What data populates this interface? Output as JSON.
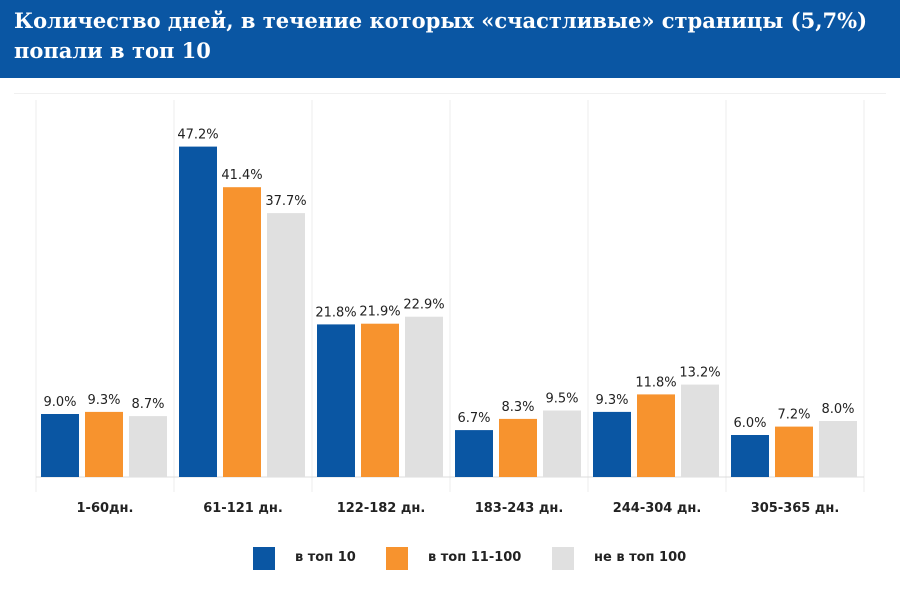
{
  "header": {
    "title": "Количество дней, в течение которых «счастливые» страницы (5,7%) попали в топ 10"
  },
  "colors": {
    "header_bg": "#0a56a3",
    "series": [
      "#0a56a3",
      "#f7932e",
      "#e0e0e0"
    ]
  },
  "chart_data": {
    "type": "bar",
    "title": "Количество дней, в течение которых «счастливые» страницы (5,7%) попали в топ 10",
    "categories": [
      "1-60дн.",
      "61-121 дн.",
      "122-182 дн.",
      "183-243 дн.",
      "244-304 дн.",
      "305-365 дн."
    ],
    "series": [
      {
        "name": "в топ 10",
        "values": [
          9.0,
          47.2,
          21.8,
          6.7,
          9.3,
          6.0
        ],
        "labels": [
          "9.0%",
          "47.2%",
          "21.8%",
          "6.7%",
          "9.3%",
          "6.0%"
        ],
        "color": "#0a56a3"
      },
      {
        "name": "в топ 11-100",
        "values": [
          9.3,
          41.4,
          21.9,
          8.3,
          11.8,
          7.2
        ],
        "labels": [
          "9.3%",
          "41.4%",
          "21.9%",
          "8.3%",
          "11.8%",
          "7.2%"
        ],
        "color": "#f7932e"
      },
      {
        "name": "не в топ 100",
        "values": [
          8.7,
          37.7,
          22.9,
          9.5,
          13.2,
          8.0
        ],
        "labels": [
          "8.7%",
          "37.7%",
          "22.9%",
          "9.5%",
          "13.2%",
          "8.0%"
        ],
        "color": "#e0e0e0"
      }
    ],
    "xlabel": "",
    "ylabel": "",
    "ylim": [
      0,
      50
    ],
    "grid": false,
    "legend_position": "bottom"
  }
}
